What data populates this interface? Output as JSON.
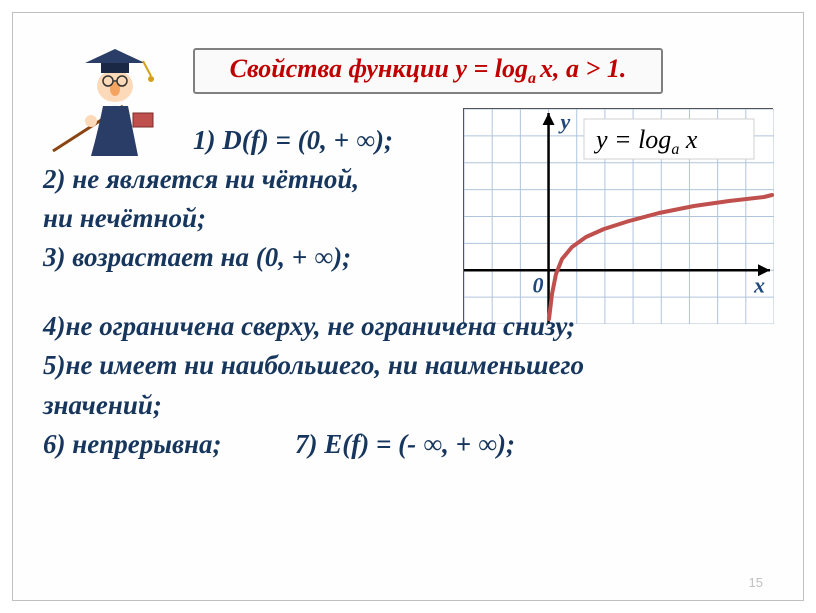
{
  "title": {
    "prefix": "Свойства функции y = log",
    "sub": "a ",
    "suffix": "x, a > 1."
  },
  "properties": {
    "p1": "1) D(f) = (0, + ∞);",
    "p2a": "2) не является ни чётной,",
    "p2b": " ни нечётной;",
    "p3": "3) возрастает на (0, + ∞);",
    "p4": "4)не ограничена сверху, не ограничена снизу;",
    "p5a": "5)не имеет ни наибольшего, ни наименьшего",
    "p5b": " значений;",
    "p6": "6) непрерывна;",
    "p7": "7) E(f) = (- ∞, + ∞);"
  },
  "graph": {
    "formula_prefix": "y = log",
    "formula_sub": "a",
    "formula_suffix": " x",
    "x_label": "x",
    "y_label": "y",
    "origin_label": "0",
    "grid_cols": 11,
    "grid_rows": 8,
    "curve_color": "#c0504d",
    "grid_color": "#b0c4de",
    "axis_color": "#000000",
    "label_color": "#1f497d",
    "curve_points": [
      [
        85,
        210
      ],
      [
        88,
        185
      ],
      [
        92,
        165
      ],
      [
        98,
        150
      ],
      [
        108,
        138
      ],
      [
        122,
        128
      ],
      [
        140,
        120
      ],
      [
        165,
        112
      ],
      [
        195,
        104
      ],
      [
        230,
        97
      ],
      [
        265,
        92
      ],
      [
        300,
        88
      ],
      [
        308,
        86
      ]
    ]
  },
  "page_number": "15"
}
